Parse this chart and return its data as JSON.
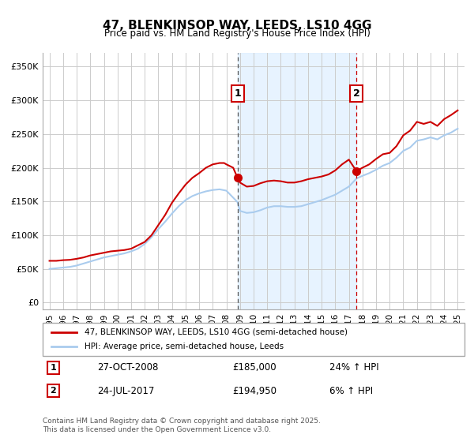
{
  "title": "47, BLENKINSOP WAY, LEEDS, LS10 4GG",
  "subtitle": "Price paid vs. HM Land Registry's House Price Index (HPI)",
  "legend_label_red": "47, BLENKINSOP WAY, LEEDS, LS10 4GG (semi-detached house)",
  "legend_label_blue": "HPI: Average price, semi-detached house, Leeds",
  "footnote": "Contains HM Land Registry data © Crown copyright and database right 2025.\nThis data is licensed under the Open Government Licence v3.0.",
  "annotation1_label": "1",
  "annotation1_date": "27-OCT-2008",
  "annotation1_price": "£185,000",
  "annotation1_hpi": "24% ↑ HPI",
  "annotation2_label": "2",
  "annotation2_date": "24-JUL-2017",
  "annotation2_price": "£194,950",
  "annotation2_hpi": "6% ↑ HPI",
  "red_color": "#cc0000",
  "blue_color": "#aaccee",
  "vline1_x": 2008.82,
  "vline2_x": 2017.56,
  "shade_xmin": 2008.82,
  "shade_xmax": 2017.56,
  "ylim_min": -10000,
  "ylim_max": 370000,
  "xlim_min": 1994.5,
  "xlim_max": 2025.5,
  "yticks": [
    0,
    50000,
    100000,
    150000,
    200000,
    250000,
    300000,
    350000
  ],
  "ytick_labels": [
    "£0",
    "£50K",
    "£100K",
    "£150K",
    "£200K",
    "£250K",
    "£300K",
    "£350K"
  ],
  "xticks": [
    1995,
    1996,
    1997,
    1998,
    1999,
    2000,
    2001,
    2002,
    2003,
    2004,
    2005,
    2006,
    2007,
    2008,
    2009,
    2010,
    2011,
    2012,
    2013,
    2014,
    2015,
    2016,
    2017,
    2018,
    2019,
    2020,
    2021,
    2022,
    2023,
    2024,
    2025
  ],
  "red_x": [
    1995.0,
    1995.5,
    1996.0,
    1996.5,
    1997.0,
    1997.5,
    1998.0,
    1998.5,
    1999.0,
    1999.5,
    2000.0,
    2000.5,
    2001.0,
    2001.5,
    2002.0,
    2002.5,
    2003.0,
    2003.5,
    2004.0,
    2004.5,
    2005.0,
    2005.5,
    2006.0,
    2006.5,
    2007.0,
    2007.5,
    2007.83,
    2008.0,
    2008.5,
    2008.82,
    2009.0,
    2009.5,
    2010.0,
    2010.5,
    2011.0,
    2011.5,
    2012.0,
    2012.5,
    2013.0,
    2013.5,
    2014.0,
    2014.5,
    2015.0,
    2015.5,
    2016.0,
    2016.5,
    2017.0,
    2017.56,
    2018.0,
    2018.5,
    2019.0,
    2019.5,
    2020.0,
    2020.5,
    2021.0,
    2021.5,
    2022.0,
    2022.5,
    2023.0,
    2023.5,
    2024.0,
    2024.5,
    2025.0
  ],
  "red_y": [
    62000,
    62000,
    63000,
    63500,
    65000,
    67000,
    70000,
    72000,
    74000,
    76000,
    77000,
    78000,
    80000,
    85000,
    90000,
    100000,
    115000,
    130000,
    148000,
    162000,
    175000,
    185000,
    192000,
    200000,
    205000,
    207000,
    207000,
    205000,
    200000,
    185000,
    178000,
    172000,
    173000,
    177000,
    180000,
    181000,
    180000,
    178000,
    178000,
    180000,
    183000,
    185000,
    187000,
    190000,
    196000,
    205000,
    212000,
    194950,
    200000,
    205000,
    213000,
    220000,
    222000,
    232000,
    248000,
    255000,
    268000,
    265000,
    268000,
    262000,
    272000,
    278000,
    285000
  ],
  "blue_x": [
    1995.0,
    1995.5,
    1996.0,
    1996.5,
    1997.0,
    1997.5,
    1998.0,
    1998.5,
    1999.0,
    1999.5,
    2000.0,
    2000.5,
    2001.0,
    2001.5,
    2002.0,
    2002.5,
    2003.0,
    2003.5,
    2004.0,
    2004.5,
    2005.0,
    2005.5,
    2006.0,
    2006.5,
    2007.0,
    2007.5,
    2008.0,
    2008.82,
    2009.0,
    2009.5,
    2010.0,
    2010.5,
    2011.0,
    2011.5,
    2012.0,
    2012.5,
    2013.0,
    2013.5,
    2014.0,
    2014.5,
    2015.0,
    2015.5,
    2016.0,
    2016.5,
    2017.0,
    2017.56,
    2018.0,
    2018.5,
    2019.0,
    2019.5,
    2020.0,
    2020.5,
    2021.0,
    2021.5,
    2022.0,
    2022.5,
    2023.0,
    2023.5,
    2024.0,
    2024.5,
    2025.0
  ],
  "blue_y": [
    50000,
    51000,
    52000,
    53000,
    55000,
    58000,
    61000,
    64000,
    67000,
    69000,
    71000,
    73000,
    76000,
    80000,
    87000,
    97000,
    109000,
    120000,
    132000,
    143000,
    152000,
    158000,
    162000,
    165000,
    167000,
    168000,
    166000,
    149000,
    136000,
    133000,
    134000,
    137000,
    141000,
    143000,
    143000,
    142000,
    142000,
    143000,
    146000,
    149000,
    152000,
    156000,
    160000,
    166000,
    172000,
    184000,
    188000,
    192000,
    197000,
    203000,
    207000,
    215000,
    225000,
    230000,
    240000,
    242000,
    245000,
    242000,
    248000,
    252000,
    258000
  ]
}
